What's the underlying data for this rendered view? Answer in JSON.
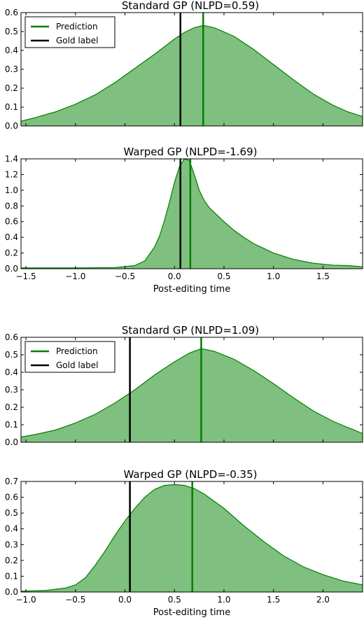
{
  "chart_data": [
    {
      "type": "area",
      "title": "Standard GP (NLPD=0.59)",
      "xlabel": "",
      "xlim": [
        -1.55,
        1.9
      ],
      "ylim": [
        0,
        0.6
      ],
      "xticks": [],
      "yticks": [
        "0.0",
        "0.1",
        "0.2",
        "0.3",
        "0.4",
        "0.5",
        "0.6"
      ],
      "fill_color": "#7fbf7f",
      "line_color": "#008000",
      "gold_color": "#000000",
      "prediction_x": 0.29,
      "gold_x": 0.06,
      "legend": {
        "show": true,
        "position": "top-left",
        "entries": [
          "Prediction",
          "Gold label"
        ]
      },
      "x": [
        -1.55,
        -1.4,
        -1.2,
        -1.0,
        -0.8,
        -0.6,
        -0.4,
        -0.2,
        0.0,
        0.1,
        0.2,
        0.29,
        0.4,
        0.6,
        0.8,
        1.0,
        1.2,
        1.4,
        1.6,
        1.75,
        1.9
      ],
      "y": [
        0.025,
        0.045,
        0.075,
        0.115,
        0.165,
        0.23,
        0.305,
        0.38,
        0.46,
        0.495,
        0.52,
        0.532,
        0.52,
        0.475,
        0.405,
        0.325,
        0.245,
        0.17,
        0.11,
        0.075,
        0.05
      ]
    },
    {
      "type": "area",
      "title": "Warped GP (NLPD=-1.69)",
      "xlabel": "Post-editing time",
      "xlim": [
        -1.55,
        1.9
      ],
      "ylim": [
        0,
        1.4
      ],
      "xticks": [
        "−1.5",
        "−1.0",
        "−0.5",
        "0.0",
        "0.5",
        "1.0",
        "1.5"
      ],
      "xtick_values": [
        -1.5,
        -1.0,
        -0.5,
        0.0,
        0.5,
        1.0,
        1.5
      ],
      "yticks": [
        "0.0",
        "0.2",
        "0.4",
        "0.6",
        "0.8",
        "1.0",
        "1.2",
        "1.4"
      ],
      "fill_color": "#7fbf7f",
      "line_color": "#008000",
      "gold_color": "#000000",
      "prediction_x": 0.16,
      "gold_x": 0.06,
      "legend": {
        "show": false
      },
      "x": [
        -1.55,
        -1.0,
        -0.6,
        -0.4,
        -0.3,
        -0.2,
        -0.15,
        -0.1,
        -0.05,
        0.0,
        0.05,
        0.1,
        0.15,
        0.2,
        0.25,
        0.3,
        0.35,
        0.4,
        0.5,
        0.6,
        0.7,
        0.8,
        1.0,
        1.2,
        1.4,
        1.6,
        1.75,
        1.9
      ],
      "y": [
        0.01,
        0.01,
        0.015,
        0.04,
        0.1,
        0.28,
        0.42,
        0.62,
        0.85,
        1.1,
        1.3,
        1.4,
        1.38,
        1.2,
        1.0,
        0.87,
        0.78,
        0.72,
        0.6,
        0.49,
        0.4,
        0.32,
        0.2,
        0.12,
        0.07,
        0.045,
        0.04,
        0.025
      ]
    },
    {
      "type": "area",
      "title": "Standard GP (NLPD=1.09)",
      "xlabel": "",
      "xlim": [
        -1.05,
        2.4
      ],
      "ylim": [
        0,
        0.6
      ],
      "xticks": [],
      "yticks": [
        "0.0",
        "0.1",
        "0.2",
        "0.3",
        "0.4",
        "0.5",
        "0.6"
      ],
      "fill_color": "#7fbf7f",
      "line_color": "#008000",
      "gold_color": "#000000",
      "prediction_x": 0.77,
      "gold_x": 0.05,
      "legend": {
        "show": true,
        "position": "top-left",
        "entries": [
          "Prediction",
          "Gold label"
        ]
      },
      "x": [
        -1.05,
        -0.9,
        -0.7,
        -0.5,
        -0.3,
        -0.1,
        0.1,
        0.3,
        0.5,
        0.65,
        0.77,
        0.9,
        1.1,
        1.3,
        1.5,
        1.7,
        1.9,
        2.1,
        2.25,
        2.4
      ],
      "y": [
        0.03,
        0.045,
        0.07,
        0.11,
        0.16,
        0.225,
        0.3,
        0.385,
        0.46,
        0.51,
        0.535,
        0.52,
        0.475,
        0.41,
        0.335,
        0.255,
        0.18,
        0.12,
        0.085,
        0.05
      ]
    },
    {
      "type": "area",
      "title": "Warped GP (NLPD=-0.35)",
      "xlabel": "Post-editing time",
      "xlim": [
        -1.05,
        2.4
      ],
      "ylim": [
        0,
        0.7
      ],
      "xticks": [
        "−1.0",
        "−0.5",
        "0.0",
        "0.5",
        "1.0",
        "1.5",
        "2.0"
      ],
      "xtick_values": [
        -1.0,
        -0.5,
        0.0,
        0.5,
        1.0,
        1.5,
        2.0
      ],
      "yticks": [
        "0.0",
        "0.1",
        "0.2",
        "0.3",
        "0.4",
        "0.5",
        "0.6",
        "0.7"
      ],
      "fill_color": "#7fbf7f",
      "line_color": "#008000",
      "gold_color": "#000000",
      "prediction_x": 0.68,
      "gold_x": 0.05,
      "legend": {
        "show": false
      },
      "x": [
        -1.05,
        -0.8,
        -0.6,
        -0.5,
        -0.4,
        -0.3,
        -0.2,
        -0.1,
        0.0,
        0.1,
        0.2,
        0.3,
        0.4,
        0.5,
        0.6,
        0.7,
        0.8,
        1.0,
        1.2,
        1.4,
        1.6,
        1.8,
        2.0,
        2.2,
        2.4
      ],
      "y": [
        0.005,
        0.01,
        0.025,
        0.045,
        0.09,
        0.17,
        0.26,
        0.36,
        0.45,
        0.53,
        0.6,
        0.65,
        0.675,
        0.68,
        0.675,
        0.655,
        0.62,
        0.53,
        0.42,
        0.32,
        0.23,
        0.16,
        0.11,
        0.07,
        0.045
      ]
    }
  ]
}
